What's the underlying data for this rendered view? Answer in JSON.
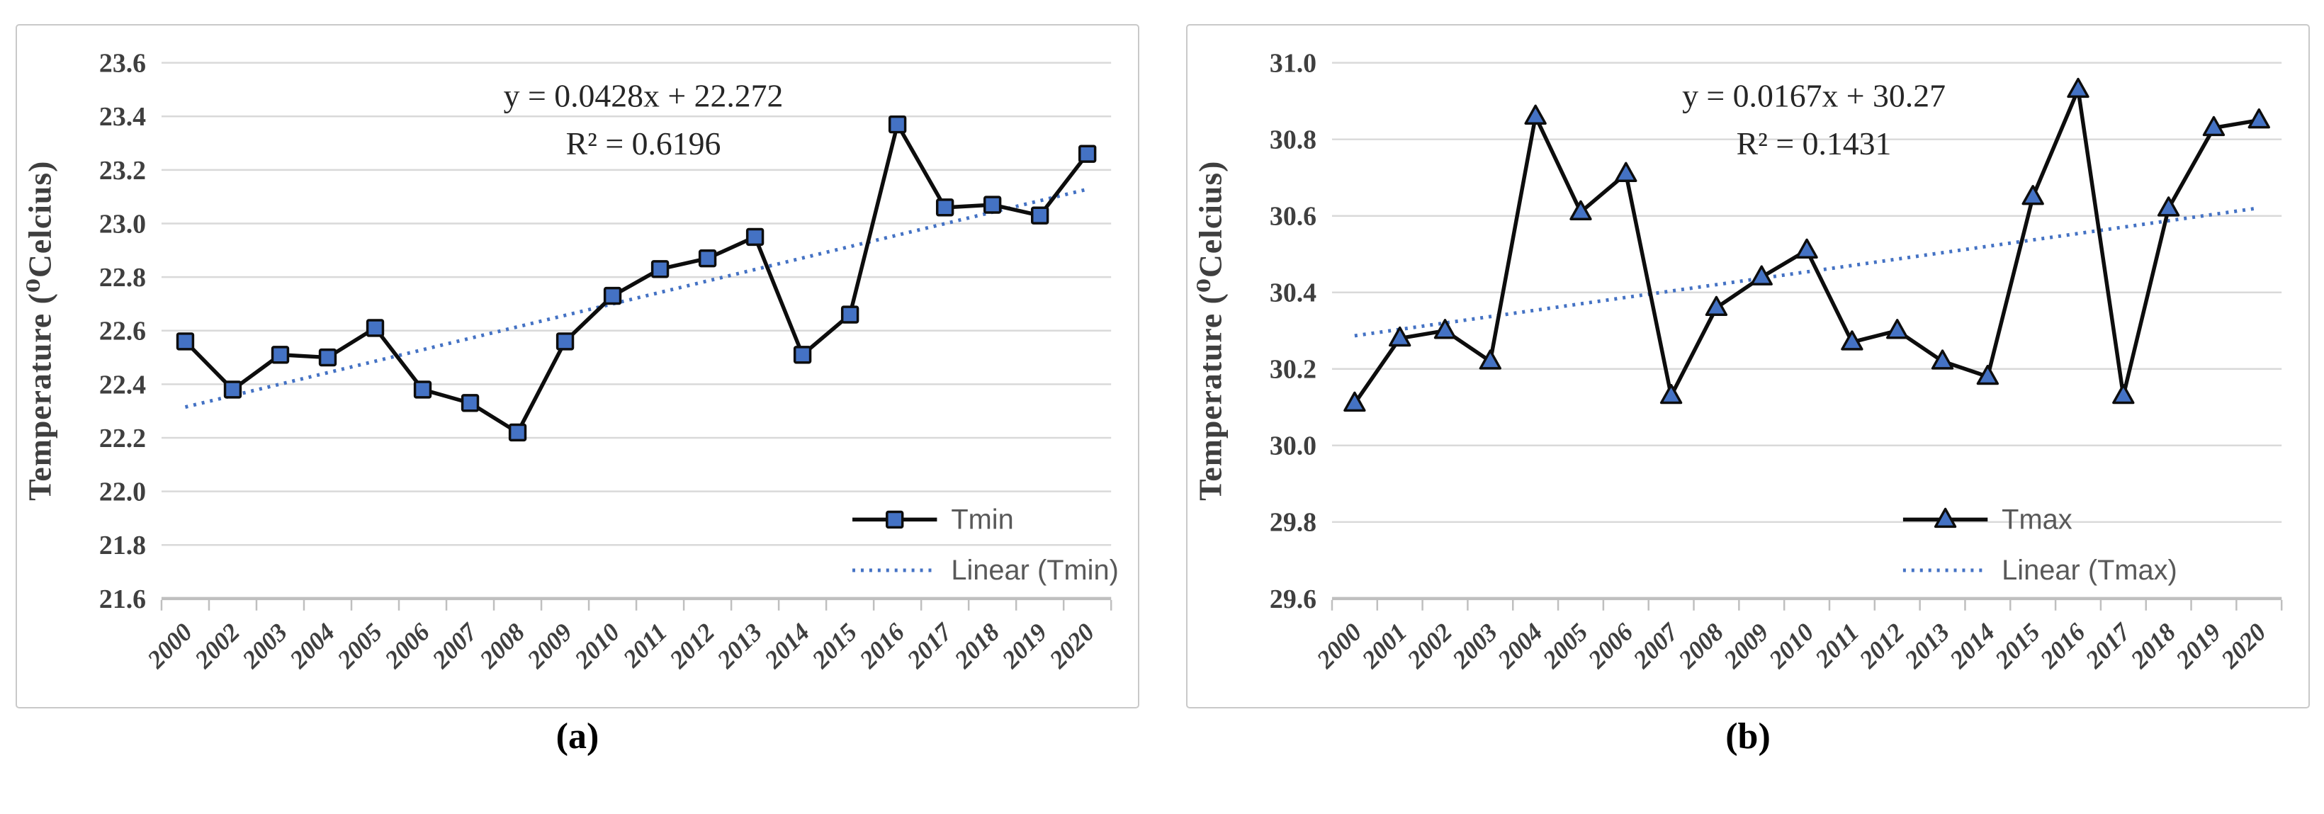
{
  "captions": {
    "a": "(a)",
    "b": "(b)"
  },
  "colors": {
    "background": "#ffffff",
    "panel_border": "#c9c9c9",
    "gridline": "#d9d9d9",
    "axis_line": "#bfbfbf",
    "series_line": "#0d0d0d",
    "marker_fill": "#4472C4",
    "marker_stroke": "#0d0d0d",
    "trend_line": "#4472C4",
    "tick_text": "#3f3f3f",
    "equation_text": "#262626",
    "legend_text": "#595959",
    "caption_text": "#000000"
  },
  "chart_data": [
    {
      "id": "tmin",
      "type": "line",
      "title": "",
      "xlabel": "",
      "ylabel": "Temperature (⁰Celcius)",
      "categories": [
        "2000",
        "2002",
        "2003",
        "2004",
        "2005",
        "2006",
        "2007",
        "2008",
        "2009",
        "2010",
        "2011",
        "2012",
        "2013",
        "2014",
        "2015",
        "2016",
        "2017",
        "2018",
        "2019",
        "2020"
      ],
      "series": [
        {
          "name": "Tmin",
          "marker": "square",
          "values": [
            22.56,
            22.38,
            22.51,
            22.5,
            22.61,
            22.38,
            22.33,
            22.22,
            22.56,
            22.73,
            22.83,
            22.87,
            22.95,
            22.51,
            22.66,
            23.37,
            23.06,
            23.07,
            23.03,
            23.26
          ]
        }
      ],
      "trendline": {
        "name": "Linear (Tmin)",
        "slope": 0.0428,
        "intercept": 22.272
      },
      "annotations": {
        "equation": "y = 0.0428x + 22.272",
        "r_squared": "R² = 0.6196"
      },
      "ylim": [
        21.6,
        23.6
      ],
      "yticks": [
        "21.6",
        "21.8",
        "22.0",
        "22.2",
        "22.4",
        "22.6",
        "22.8",
        "23.0",
        "23.2",
        "23.4",
        "23.6"
      ],
      "grid": true,
      "legend_position": "inside-lower-right",
      "legend_entries": [
        "Tmin",
        "Linear (Tmin)"
      ],
      "legend_x": 1185
    },
    {
      "id": "tmax",
      "type": "line",
      "title": "",
      "xlabel": "",
      "ylabel": "Temperature (⁰Celcius)",
      "categories": [
        "2000",
        "2001",
        "2002",
        "2003",
        "2004",
        "2005",
        "2006",
        "2007",
        "2008",
        "2009",
        "2010",
        "2011",
        "2012",
        "2013",
        "2014",
        "2015",
        "2016",
        "2017",
        "2018",
        "2019",
        "2020"
      ],
      "series": [
        {
          "name": "Tmax",
          "marker": "triangle",
          "values": [
            30.11,
            30.28,
            30.3,
            30.22,
            30.86,
            30.61,
            30.71,
            30.13,
            30.36,
            30.44,
            30.51,
            30.27,
            30.3,
            30.22,
            30.18,
            30.65,
            30.93,
            30.13,
            30.62,
            30.83,
            30.85
          ]
        }
      ],
      "trendline": {
        "name": "Linear (Tmax)",
        "slope": 0.0167,
        "intercept": 30.27
      },
      "annotations": {
        "equation": "y = 0.0167x + 30.27",
        "r_squared": "R² = 0.1431"
      },
      "ylim": [
        29.6,
        31.0
      ],
      "yticks": [
        "29.6",
        "29.8",
        "30.0",
        "30.2",
        "30.4",
        "30.6",
        "30.8",
        "31.0"
      ],
      "grid": true,
      "legend_position": "inside-lower-right",
      "legend_entries": [
        "Tmax",
        "Linear (Tmax)"
      ],
      "legend_x": 1015
    }
  ]
}
